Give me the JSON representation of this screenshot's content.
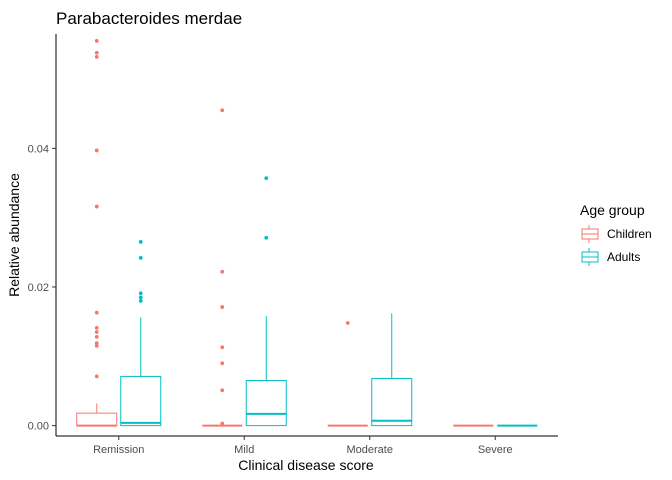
{
  "chart_data": {
    "type": "box",
    "title": "Parabacteroides merdae",
    "xlabel": "Clinical disease score",
    "ylabel": "Relative abundance",
    "categories": [
      "Remission",
      "Mild",
      "Moderate",
      "Severe"
    ],
    "y_ticks": [
      0.0,
      0.02,
      0.04
    ],
    "y_tick_labels": [
      "0.00",
      "0.02",
      "0.04"
    ],
    "ylim": [
      -0.0015,
      0.0565
    ],
    "grid": false,
    "legend": {
      "title": "Age group",
      "position": "right",
      "entries": [
        "Children",
        "Adults"
      ]
    },
    "series": [
      {
        "name": "Children",
        "color": "#F8766D",
        "boxes": [
          {
            "category": "Remission",
            "q1": 0.0,
            "median": 0.0,
            "q3": 0.0018,
            "whisker_low": 0.0,
            "whisker_high": 0.0032,
            "outliers": [
              0.0555,
              0.0538,
              0.0532,
              0.0397,
              0.0316,
              0.0163,
              0.0141,
              0.0135,
              0.0128,
              0.0119,
              0.0115,
              0.0071
            ]
          },
          {
            "category": "Mild",
            "q1": 0.0,
            "median": 0.0,
            "q3": 0.0,
            "whisker_low": 0.0,
            "whisker_high": 0.0,
            "outliers": [
              0.0455,
              0.0222,
              0.0171,
              0.0113,
              0.009,
              0.0051,
              0.0003
            ]
          },
          {
            "category": "Moderate",
            "q1": 0.0,
            "median": 0.0,
            "q3": 0.0,
            "whisker_low": 0.0,
            "whisker_high": 0.0,
            "outliers": [
              0.0148
            ]
          },
          {
            "category": "Severe",
            "q1": 0.0,
            "median": 0.0,
            "q3": 0.0,
            "whisker_low": 0.0,
            "whisker_high": 0.0,
            "outliers": []
          }
        ]
      },
      {
        "name": "Adults",
        "color": "#00BFC4",
        "boxes": [
          {
            "category": "Remission",
            "q1": 0.0,
            "median": 0.0004,
            "q3": 0.0071,
            "whisker_low": 0.0,
            "whisker_high": 0.0156,
            "outliers": [
              0.0265,
              0.0242,
              0.0191,
              0.0185,
              0.018
            ]
          },
          {
            "category": "Mild",
            "q1": 0.0,
            "median": 0.0017,
            "q3": 0.0065,
            "whisker_low": 0.0,
            "whisker_high": 0.0158,
            "outliers": [
              0.0357,
              0.0271
            ]
          },
          {
            "category": "Moderate",
            "q1": 0.0,
            "median": 0.0007,
            "q3": 0.0068,
            "whisker_low": 0.0,
            "whisker_high": 0.0162,
            "outliers": []
          },
          {
            "category": "Severe",
            "q1": 0.0,
            "median": 0.0,
            "q3": 0.0,
            "whisker_low": 0.0,
            "whisker_high": 0.0,
            "outliers": []
          }
        ]
      }
    ]
  }
}
